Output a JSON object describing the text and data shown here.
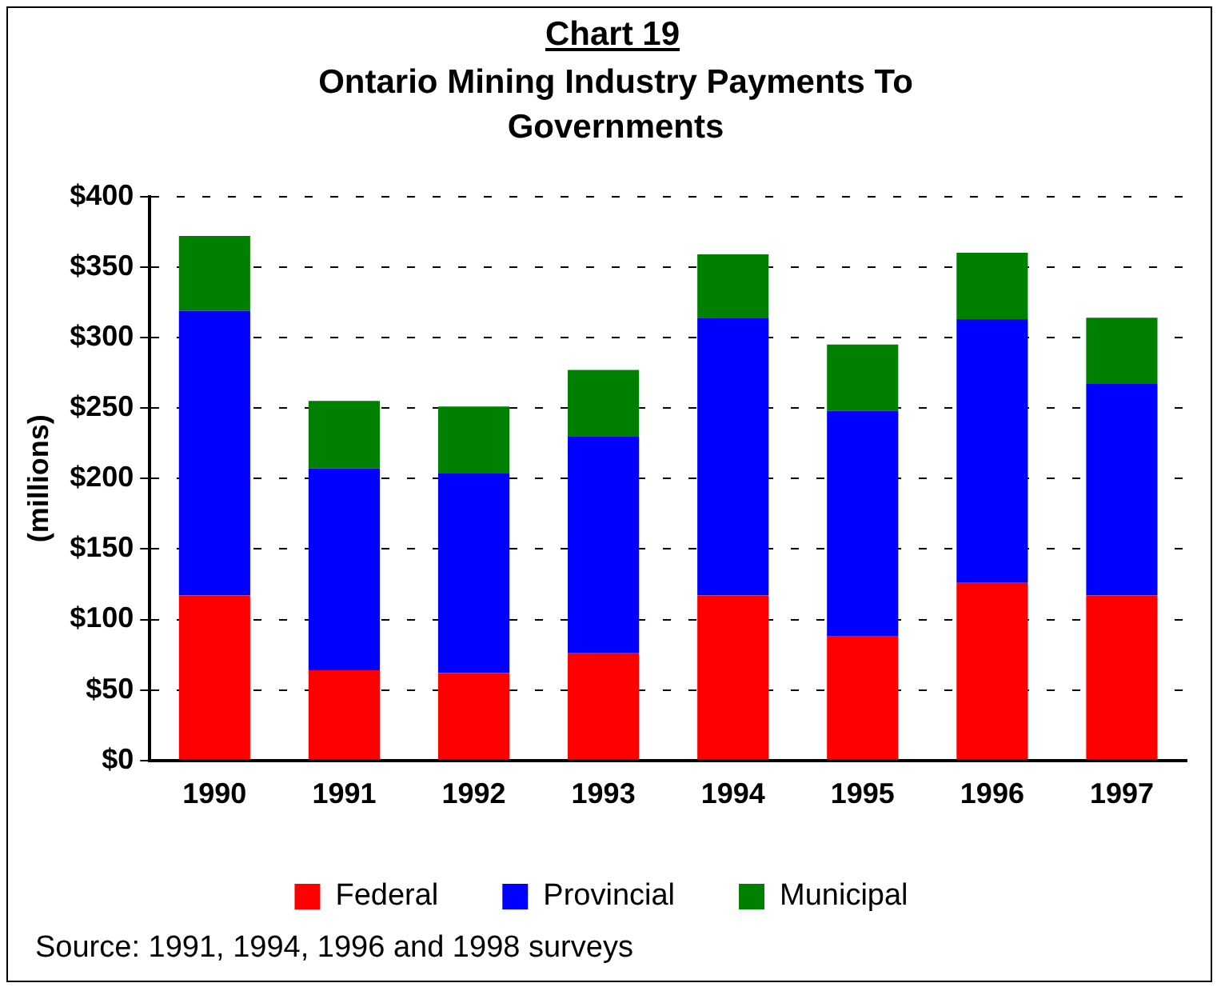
{
  "chart_data": {
    "type": "bar",
    "title": "Chart 19",
    "subtitle": "Ontario Mining Industry Payments To Governments",
    "ylabel": "(millions)",
    "categories": [
      "1990",
      "1991",
      "1992",
      "1993",
      "1994",
      "1995",
      "1996",
      "1997"
    ],
    "series": [
      {
        "name": "Federal",
        "color": "#ff0000",
        "values": [
          117,
          64,
          62,
          76,
          117,
          88,
          126,
          117
        ]
      },
      {
        "name": "Provincial",
        "color": "#0000ff",
        "values": [
          202,
          143,
          142,
          154,
          197,
          160,
          187,
          150
        ]
      },
      {
        "name": "Municipal",
        "color": "#008000",
        "values": [
          53,
          48,
          47,
          47,
          45,
          47,
          47,
          47
        ]
      }
    ],
    "stacked": true,
    "ylim": [
      0,
      400
    ],
    "yticks": [
      {
        "value": 0,
        "label": "$0"
      },
      {
        "value": 50,
        "label": "$50"
      },
      {
        "value": 100,
        "label": "$100"
      },
      {
        "value": 150,
        "label": "$150"
      },
      {
        "value": 200,
        "label": "$200"
      },
      {
        "value": 250,
        "label": "$250"
      },
      {
        "value": 300,
        "label": "$300"
      },
      {
        "value": 350,
        "label": "$350"
      },
      {
        "value": 400,
        "label": "$400"
      }
    ],
    "grid": "y",
    "legend": "bottom",
    "annotations": [
      "Source:  1991, 1994, 1996 and 1998 surveys"
    ]
  }
}
